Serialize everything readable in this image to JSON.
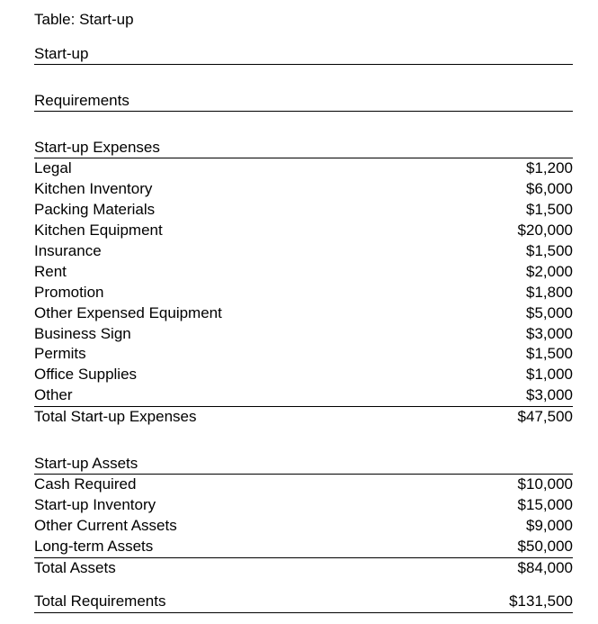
{
  "type": "table",
  "background_color": "#ffffff",
  "text_color": "#000000",
  "font_family": "Arial",
  "font_size_pt": 13,
  "line_height": 1.35,
  "border_color": "#000000",
  "title": "Table:  Start-up",
  "header1": "Start-up",
  "header2": "Requirements",
  "expenses_header": "Start-up Expenses",
  "expenses": [
    {
      "label": "Legal",
      "amount": "$1,200"
    },
    {
      "label": "Kitchen Inventory",
      "amount": "$6,000"
    },
    {
      "label": "Packing Materials",
      "amount": "$1,500"
    },
    {
      "label": "Kitchen Equipment",
      "amount": "$20,000"
    },
    {
      "label": "Insurance",
      "amount": "$1,500"
    },
    {
      "label": "Rent",
      "amount": "$2,000"
    },
    {
      "label": "Promotion",
      "amount": "$1,800"
    },
    {
      "label": "Other Expensed Equipment",
      "amount": "$5,000"
    },
    {
      "label": "Business Sign",
      "amount": "$3,000"
    },
    {
      "label": "Permits",
      "amount": "$1,500"
    },
    {
      "label": "Office Supplies",
      "amount": "$1,000"
    },
    {
      "label": "Other",
      "amount": "$3,000"
    }
  ],
  "expenses_total": {
    "label": "Total Start-up Expenses",
    "amount": "$47,500"
  },
  "assets_header": "Start-up Assets",
  "assets": [
    {
      "label": "Cash Required",
      "amount": "$10,000"
    },
    {
      "label": "Start-up Inventory",
      "amount": "$15,000"
    },
    {
      "label": "Other Current Assets",
      "amount": "$9,000"
    },
    {
      "label": "Long-term Assets",
      "amount": "$50,000"
    }
  ],
  "assets_total": {
    "label": "Total Assets",
    "amount": "$84,000"
  },
  "grand_total": {
    "label": "Total Requirements",
    "amount": "$131,500"
  }
}
